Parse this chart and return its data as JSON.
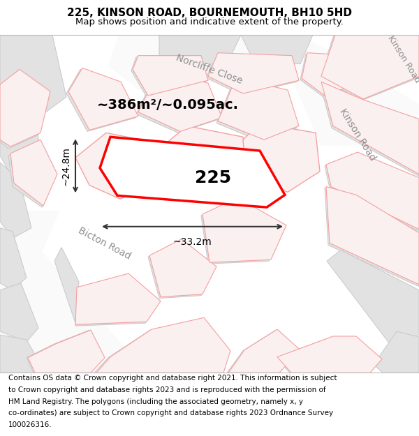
{
  "title_line1": "225, KINSON ROAD, BOURNEMOUTH, BH10 5HD",
  "title_line2": "Map shows position and indicative extent of the property.",
  "footer_lines": [
    "Contains OS data © Crown copyright and database right 2021. This information is subject",
    "to Crown copyright and database rights 2023 and is reproduced with the permission of",
    "HM Land Registry. The polygons (including the associated geometry, namely x, y",
    "co-ordinates) are subject to Crown copyright and database rights 2023 Ordnance Survey",
    "100026316."
  ],
  "area_label": "~386m²/~0.095ac.",
  "width_label": "~33.2m",
  "height_label": "~24.8m",
  "number_label": "225",
  "map_bg": "#f0f0f0",
  "block_color": "#e2e2e2",
  "block_edge_color": "#c8c8c8",
  "road_color": "#fafafa",
  "highlight_poly_color": "#ffffff",
  "highlight_poly_edge": "#ff0000",
  "pink_edge_color": "#f5a0a0",
  "pink_fill_color": "#faf0f0",
  "street_label_color": "#909090",
  "dim_line_color": "#333333",
  "title_fontsize": 11,
  "subtitle_fontsize": 9.5,
  "footer_fontsize": 7.5,
  "street_fontsize": 10,
  "area_fontsize": 14,
  "number_fontsize": 18,
  "dim_fontsize": 10
}
